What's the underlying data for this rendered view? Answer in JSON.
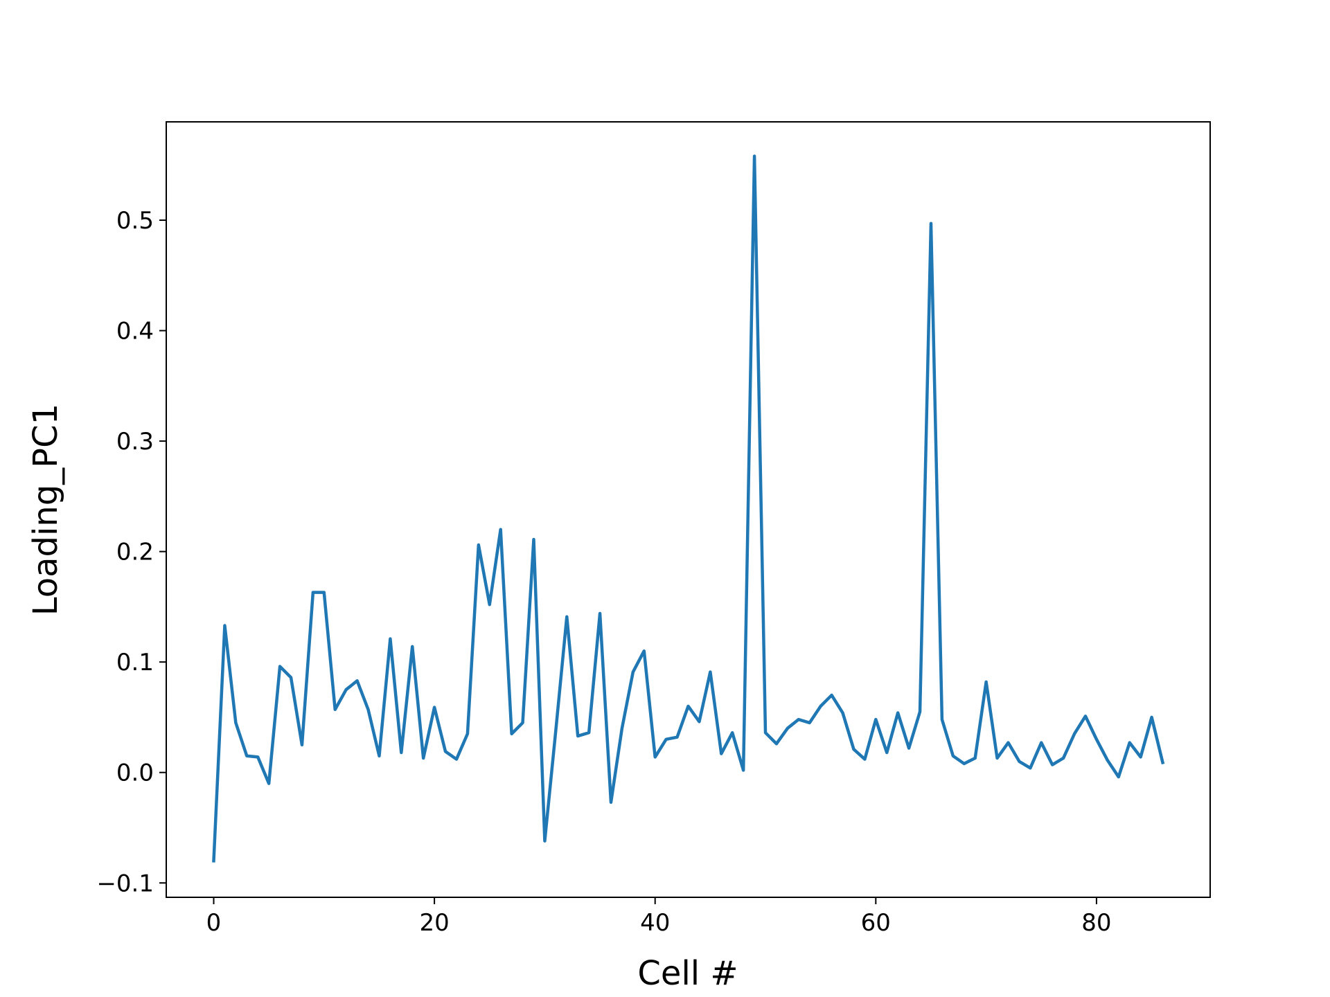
{
  "chart_data": {
    "type": "line",
    "xlabel": "Cell #",
    "ylabel": "Loading_PC1",
    "xlim": [
      -4.3,
      90.3
    ],
    "ylim": [
      -0.113,
      0.589
    ],
    "xticks": [
      0,
      20,
      40,
      60,
      80
    ],
    "yticks": [
      -0.1,
      0.0,
      0.1,
      0.2,
      0.3,
      0.4,
      0.5
    ],
    "xtick_labels": [
      "0",
      "20",
      "40",
      "60",
      "80"
    ],
    "ytick_labels": [
      "−0.1",
      "0.0",
      "0.1",
      "0.2",
      "0.3",
      "0.4",
      "0.5"
    ],
    "grid": false,
    "series": [
      {
        "color": "#1f77b4",
        "x": [
          0,
          1,
          2,
          3,
          4,
          5,
          6,
          7,
          8,
          9,
          10,
          11,
          12,
          13,
          14,
          15,
          16,
          17,
          18,
          19,
          20,
          21,
          22,
          23,
          24,
          25,
          26,
          27,
          28,
          29,
          30,
          31,
          32,
          33,
          34,
          35,
          36,
          37,
          38,
          39,
          40,
          41,
          42,
          43,
          44,
          45,
          46,
          47,
          48,
          49,
          50,
          51,
          52,
          53,
          54,
          55,
          56,
          57,
          58,
          59,
          60,
          61,
          62,
          63,
          64,
          65,
          66,
          67,
          68,
          69,
          70,
          71,
          72,
          73,
          74,
          75,
          76,
          77,
          78,
          79,
          80,
          81,
          82,
          83,
          84,
          85,
          86
        ],
        "y": [
          -0.08,
          0.133,
          0.045,
          0.015,
          0.014,
          -0.01,
          0.096,
          0.086,
          0.025,
          0.163,
          0.163,
          0.057,
          0.075,
          0.083,
          0.057,
          0.015,
          0.121,
          0.018,
          0.114,
          0.013,
          0.059,
          0.019,
          0.012,
          0.035,
          0.206,
          0.152,
          0.22,
          0.035,
          0.045,
          0.211,
          -0.062,
          0.038,
          0.141,
          0.033,
          0.036,
          0.144,
          -0.027,
          0.04,
          0.091,
          0.11,
          0.014,
          0.03,
          0.032,
          0.06,
          0.046,
          0.091,
          0.017,
          0.036,
          0.002,
          0.558,
          0.036,
          0.026,
          0.04,
          0.048,
          0.045,
          0.06,
          0.07,
          0.054,
          0.021,
          0.012,
          0.048,
          0.018,
          0.054,
          0.022,
          0.055,
          0.497,
          0.048,
          0.015,
          0.008,
          0.013,
          0.082,
          0.013,
          0.027,
          0.01,
          0.004,
          0.027,
          0.007,
          0.013,
          0.035,
          0.051,
          0.03,
          0.011,
          -0.004,
          0.027,
          0.014,
          0.05,
          0.009
        ]
      }
    ]
  }
}
